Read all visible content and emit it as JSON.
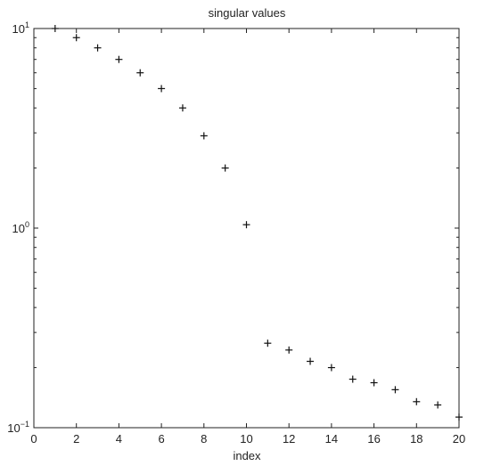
{
  "chart_data": {
    "type": "scatter",
    "title": "singular values",
    "xlabel": "index",
    "ylabel": "",
    "xlim": [
      0,
      20
    ],
    "ylim": [
      0.1,
      10
    ],
    "yscale": "log",
    "grid": false,
    "marker": "+",
    "marker_color": "#111111",
    "x_ticks": [
      0,
      2,
      4,
      6,
      8,
      10,
      12,
      14,
      16,
      18,
      20
    ],
    "y_ticks": [
      {
        "value": 10,
        "base": "10",
        "exponent": "1"
      },
      {
        "value": 1,
        "base": "10",
        "exponent": "0"
      },
      {
        "value": 0.1,
        "base": "10",
        "exponent": "−1"
      }
    ],
    "series": [
      {
        "x": [
          1,
          2,
          3,
          4,
          5,
          6,
          7,
          8,
          9,
          10,
          11,
          12,
          13,
          14,
          15,
          16,
          17,
          18,
          19,
          20
        ],
        "y": [
          10.0,
          9.0,
          8.0,
          7.0,
          6.0,
          5.0,
          4.0,
          2.9,
          2.0,
          1.04,
          0.265,
          0.245,
          0.215,
          0.2,
          0.175,
          0.168,
          0.155,
          0.135,
          0.13,
          0.113
        ]
      }
    ]
  }
}
